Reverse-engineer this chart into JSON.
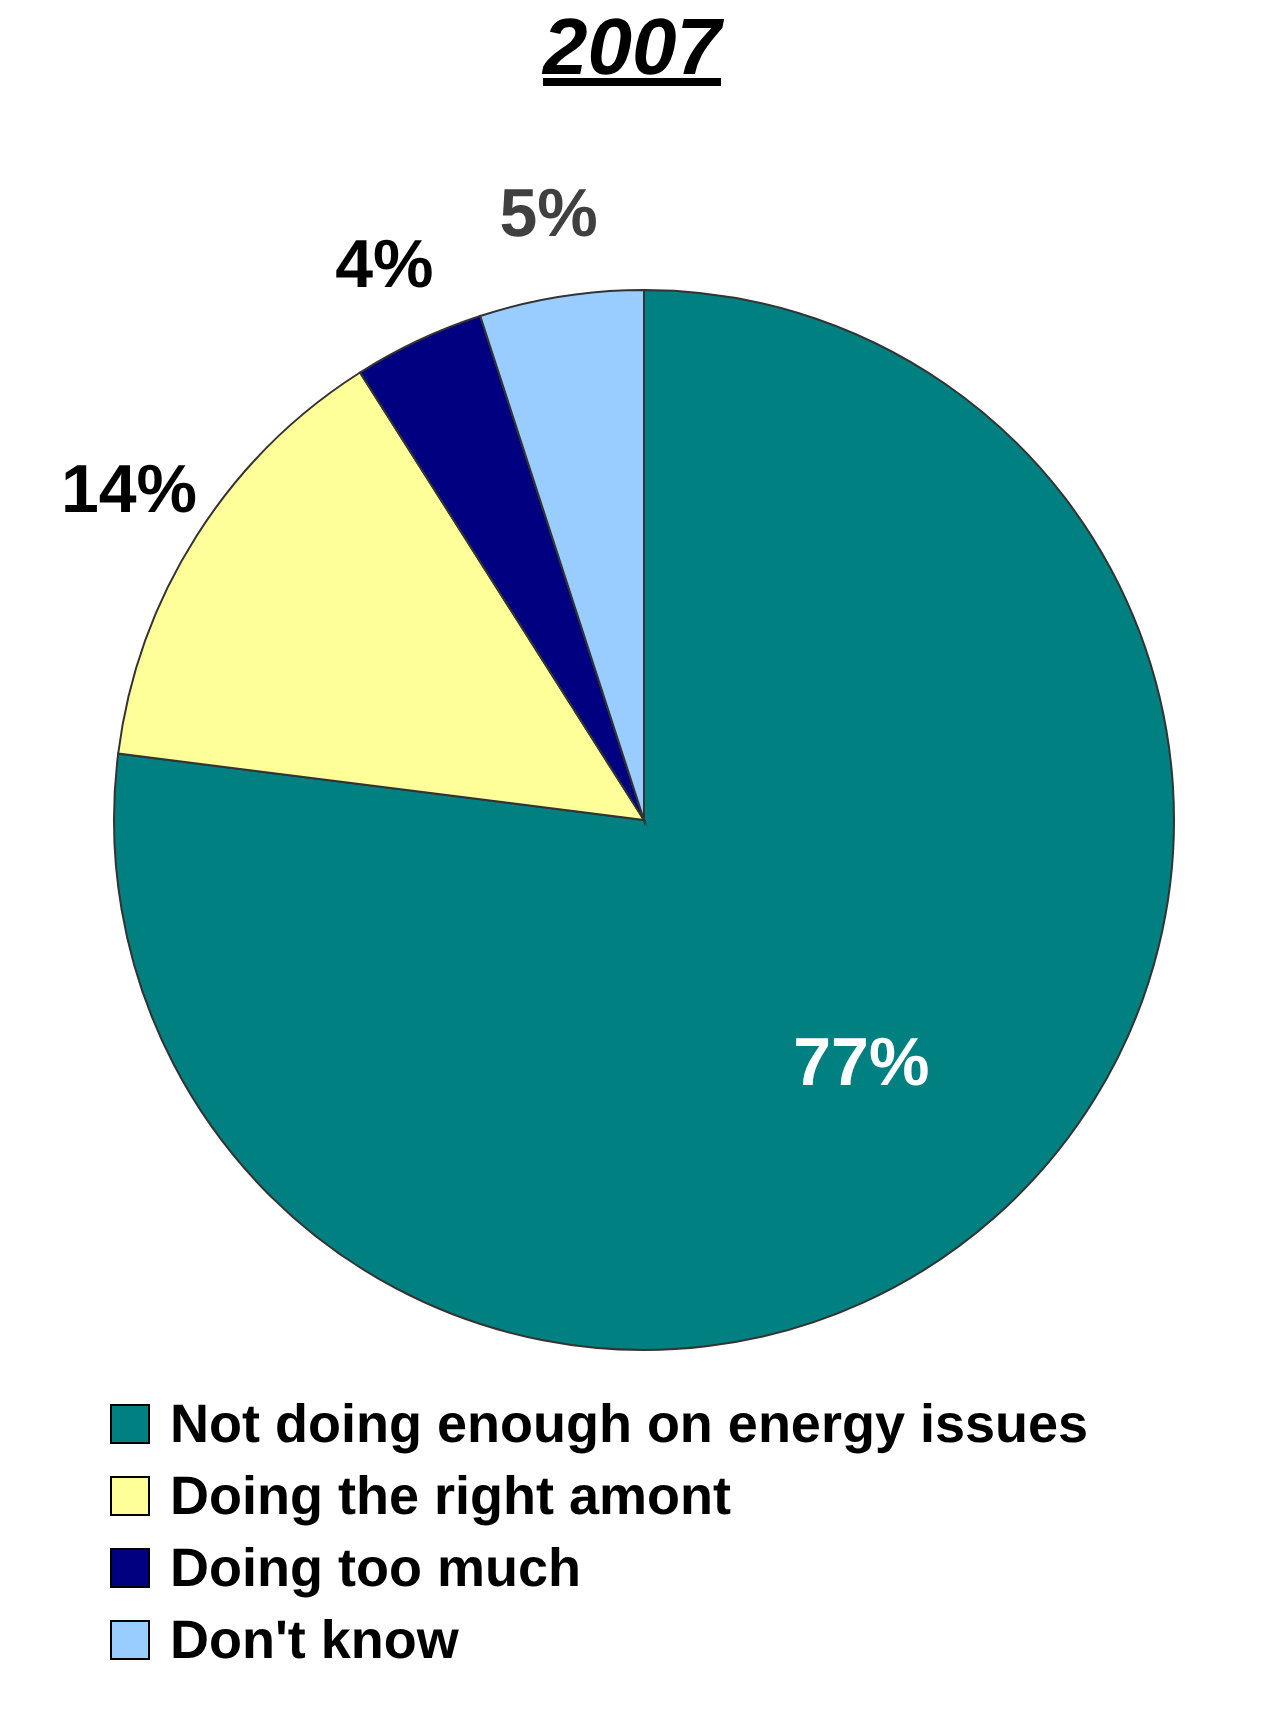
{
  "chart_data": {
    "type": "pie",
    "title": "2007",
    "categories": [
      "Not doing enough on energy issues",
      "Doing the right amont",
      "Doing too much",
      "Don't know"
    ],
    "values": [
      77,
      14,
      4,
      5
    ],
    "colors": [
      "#008080",
      "#ffff99",
      "#000080",
      "#99ccff"
    ],
    "value_labels": [
      "77%",
      "14%",
      "4%",
      "5%"
    ],
    "legend": "bottom"
  }
}
